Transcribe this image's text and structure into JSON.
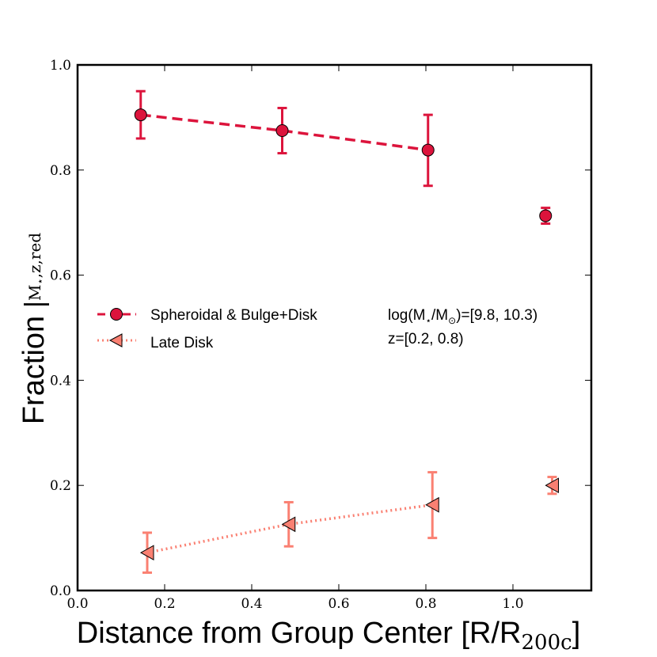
{
  "chart_data": {
    "type": "line",
    "title": "",
    "xlabel": "Distance from Group Center [R/R",
    "xlabel_sub": "200c",
    "xlabel_end": "]",
    "ylabel": "Fraction",
    "ylabel_sub": "M",
    "ylabel_sub_star": "⋆",
    "ylabel_sub_rest": ",z,red",
    "xlim": [
      0.0,
      1.18
    ],
    "ylim": [
      0.0,
      1.0
    ],
    "xticks": [
      0.0,
      0.2,
      0.4,
      0.6,
      0.8,
      1.0
    ],
    "xtick_labels": [
      "0.0",
      "0.2",
      "0.4",
      "0.6",
      "0.8",
      "1.0"
    ],
    "yticks": [
      0.0,
      0.2,
      0.4,
      0.6,
      0.8,
      1.0
    ],
    "ytick_labels": [
      "0.0",
      "0.2",
      "0.4",
      "0.6",
      "0.8",
      "1.0"
    ],
    "grid": false,
    "series": [
      {
        "name": "Spheroidal & Bulge+Disk",
        "color": "#dc143c",
        "marker": "circle",
        "linestyle": "dashed",
        "x": [
          0.145,
          0.47,
          0.805,
          1.075
        ],
        "y": [
          0.905,
          0.875,
          0.838,
          0.713
        ],
        "yerr_low": [
          0.045,
          0.043,
          0.068,
          0.015
        ],
        "yerr_high": [
          0.045,
          0.043,
          0.067,
          0.015
        ],
        "connected_points": 3
      },
      {
        "name": "Late Disk",
        "color": "#fa8072",
        "marker": "triangle-left",
        "linestyle": "dotted",
        "x": [
          0.16,
          0.485,
          0.815,
          1.09
        ],
        "y": [
          0.072,
          0.126,
          0.163,
          0.2
        ],
        "yerr_low": [
          0.038,
          0.042,
          0.063,
          0.016
        ],
        "yerr_high": [
          0.038,
          0.042,
          0.062,
          0.016
        ],
        "connected_points": 3
      }
    ],
    "legend_location": "center-left",
    "annotation": {
      "line1_prefix": "log(M",
      "line1_star": "⋆",
      "line1_mid": "/M",
      "line1_sun": "⊙",
      "line1_suffix": ")=[9.8, 10.3)",
      "line2": "z=[0.2, 0.8)"
    }
  }
}
